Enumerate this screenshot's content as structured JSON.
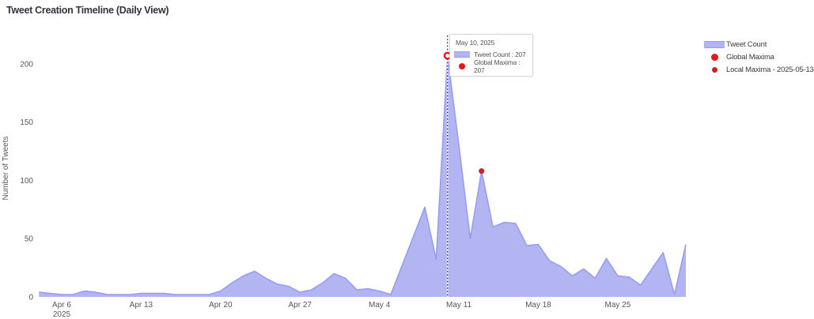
{
  "title": "Tweet Creation Timeline (Daily View)",
  "colors": {
    "area_fill": "#b2b5f2",
    "area_line": "#979df0",
    "global_maxima_red": "#e81519",
    "local_maxima_red": "#cf2125",
    "spike_line": "#111111",
    "title_text": "#31333f",
    "axis_text": "#565656"
  },
  "y_axis": {
    "label": "Number of Tweets",
    "ticks": [
      0,
      50,
      100,
      150,
      200
    ]
  },
  "x_axis": {
    "tick_labels": [
      "Apr 6",
      "Apr 13",
      "Apr 20",
      "Apr 27",
      "May 4",
      "May 11",
      "May 18",
      "May 25"
    ],
    "year_label": "2025"
  },
  "legend": {
    "items": [
      {
        "label": "Tweet Count",
        "marker": "area-swatch"
      },
      {
        "label": "Global Maxima",
        "marker": "red-dot-large"
      },
      {
        "label": "Local Maxima - 2025-05-13",
        "marker": "red-dot-small"
      }
    ]
  },
  "tooltip": {
    "date": "May 10, 2025",
    "rows": [
      {
        "text": "Tweet Count : 207",
        "marker": "area-swatch"
      },
      {
        "text": "Global Maxima : 207",
        "marker": "red-dot"
      }
    ]
  },
  "chart_data": {
    "type": "area",
    "title": "Tweet Creation Timeline (Daily View)",
    "xlabel": "",
    "ylabel": "Number of Tweets",
    "ylim": [
      0,
      220
    ],
    "grid": false,
    "legend_position": "top-right",
    "x": [
      "2025-04-04",
      "2025-04-05",
      "2025-04-06",
      "2025-04-07",
      "2025-04-08",
      "2025-04-09",
      "2025-04-10",
      "2025-04-11",
      "2025-04-12",
      "2025-04-13",
      "2025-04-14",
      "2025-04-15",
      "2025-04-16",
      "2025-04-17",
      "2025-04-18",
      "2025-04-19",
      "2025-04-20",
      "2025-04-21",
      "2025-04-22",
      "2025-04-23",
      "2025-04-24",
      "2025-04-25",
      "2025-04-26",
      "2025-04-27",
      "2025-04-28",
      "2025-04-29",
      "2025-04-30",
      "2025-05-01",
      "2025-05-02",
      "2025-05-03",
      "2025-05-04",
      "2025-05-05",
      "2025-05-06",
      "2025-05-07",
      "2025-05-08",
      "2025-05-09",
      "2025-05-10",
      "2025-05-11",
      "2025-05-12",
      "2025-05-13",
      "2025-05-14",
      "2025-05-15",
      "2025-05-16",
      "2025-05-17",
      "2025-05-18",
      "2025-05-19",
      "2025-05-20",
      "2025-05-21",
      "2025-05-22",
      "2025-05-23",
      "2025-05-24",
      "2025-05-25",
      "2025-05-26",
      "2025-05-27",
      "2025-05-28",
      "2025-05-29",
      "2025-05-30",
      "2025-05-31"
    ],
    "series": [
      {
        "name": "Tweet Count",
        "values": [
          4,
          3,
          2,
          2,
          5,
          4,
          2,
          2,
          2,
          3,
          3,
          3,
          2,
          2,
          2,
          2,
          5,
          12,
          18,
          22,
          16,
          11,
          9,
          4,
          6,
          12,
          20,
          16,
          6,
          7,
          5,
          2,
          27,
          52,
          77,
          32,
          207,
          130,
          50,
          108,
          60,
          64,
          63,
          44,
          45,
          31,
          26,
          18,
          24,
          16,
          33,
          18,
          17,
          10,
          24,
          38,
          2,
          45
        ]
      }
    ],
    "annotations": {
      "global_maxima": {
        "date": "2025-05-10",
        "value": 207
      },
      "local_maxima": {
        "date": "2025-05-13",
        "value": 108
      },
      "spike_line_date": "2025-05-10"
    },
    "x_tick_day_indices": [
      2,
      9,
      16,
      23,
      30,
      37,
      44,
      51
    ]
  }
}
